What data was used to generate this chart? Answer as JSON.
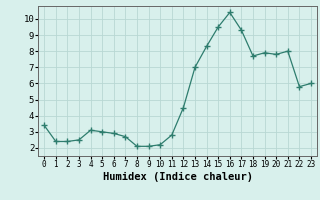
{
  "x": [
    0,
    1,
    2,
    3,
    4,
    5,
    6,
    7,
    8,
    9,
    10,
    11,
    12,
    13,
    14,
    15,
    16,
    17,
    18,
    19,
    20,
    21,
    22,
    23
  ],
  "y": [
    3.4,
    2.4,
    2.4,
    2.5,
    3.1,
    3.0,
    2.9,
    2.7,
    2.1,
    2.1,
    2.2,
    2.8,
    4.5,
    7.0,
    8.3,
    9.5,
    10.4,
    9.3,
    7.7,
    7.9,
    7.8,
    8.0,
    5.8,
    6.0
  ],
  "line_color": "#2e7d6e",
  "marker": "+",
  "marker_size": 4,
  "bg_color": "#d8f0ec",
  "grid_color": "#b8d8d4",
  "xlabel": "Humidex (Indice chaleur)",
  "xlim": [
    -0.5,
    23.5
  ],
  "ylim": [
    1.5,
    10.8
  ],
  "yticks": [
    2,
    3,
    4,
    5,
    6,
    7,
    8,
    9,
    10
  ],
  "xticks": [
    0,
    1,
    2,
    3,
    4,
    5,
    6,
    7,
    8,
    9,
    10,
    11,
    12,
    13,
    14,
    15,
    16,
    17,
    18,
    19,
    20,
    21,
    22,
    23
  ],
  "tick_label_fontsize": 6.5,
  "xlabel_fontsize": 7.5
}
